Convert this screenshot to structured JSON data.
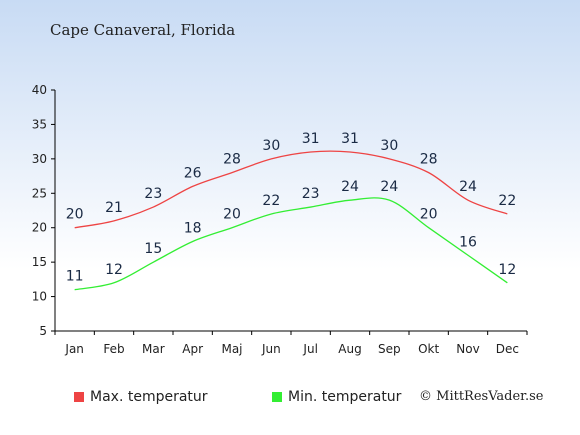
{
  "title": "Cape Canaveral, Florida",
  "credit": "© MittResVader.se",
  "colors": {
    "max": "#ee4444",
    "min": "#33ee33",
    "axis": "#000000",
    "label": "#1a2a44"
  },
  "chart_data": {
    "type": "line",
    "title": "Cape Canaveral, Florida",
    "xlabel": "",
    "ylabel": "",
    "categories": [
      "Jan",
      "Feb",
      "Mar",
      "Apr",
      "Maj",
      "Jun",
      "Jul",
      "Aug",
      "Sep",
      "Okt",
      "Nov",
      "Dec"
    ],
    "ylim": [
      5,
      40
    ],
    "yticks": [
      5,
      10,
      15,
      20,
      25,
      30,
      35,
      40
    ],
    "grid": false,
    "legend_position": "bottom",
    "series": [
      {
        "name": "Max. temperatur",
        "color": "#ee4444",
        "values": [
          20,
          21,
          23,
          26,
          28,
          30,
          31,
          31,
          30,
          28,
          24,
          22
        ]
      },
      {
        "name": "Min. temperatur",
        "color": "#33ee33",
        "values": [
          11,
          12,
          15,
          18,
          20,
          22,
          23,
          24,
          24,
          20,
          16,
          12
        ]
      }
    ]
  }
}
